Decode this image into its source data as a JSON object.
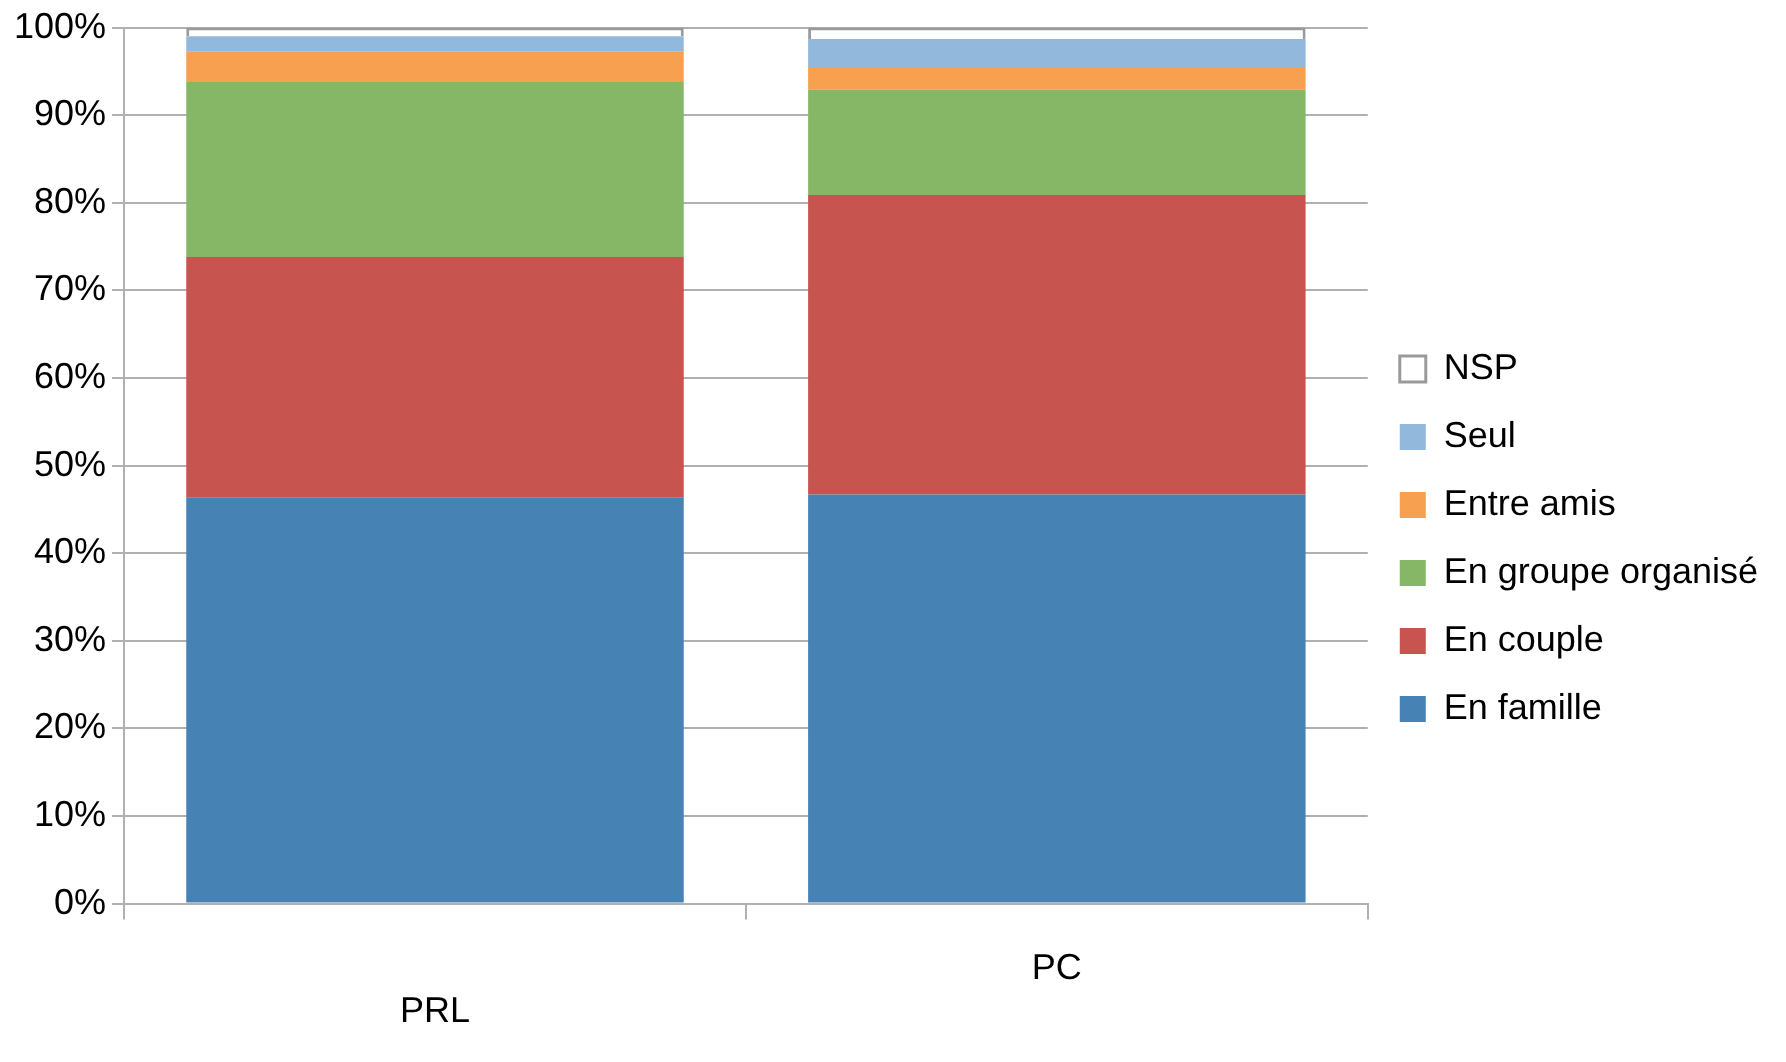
{
  "chart_data": {
    "type": "bar",
    "stacked": true,
    "categories": [
      "PRL",
      "PC"
    ],
    "series": [
      {
        "name": "En famille",
        "color": "#4682b4",
        "values": [
          46.4,
          46.7
        ]
      },
      {
        "name": "En couple",
        "color": "#c85450",
        "values": [
          27.4,
          34.2
        ]
      },
      {
        "name": "En groupe organisé",
        "color": "#86b767",
        "values": [
          20.0,
          12.0
        ]
      },
      {
        "name": "Entre amis",
        "color": "#f7a04f",
        "values": [
          3.5,
          2.6
        ]
      },
      {
        "name": "Seul",
        "color": "#92b8dc",
        "values": [
          1.7,
          3.2
        ]
      },
      {
        "name": "NSP",
        "color": "#ffffff",
        "values": [
          1.0,
          1.3
        ]
      }
    ],
    "ylim": [
      0,
      100
    ],
    "yticks": [
      {
        "value": 0,
        "label": "0%"
      },
      {
        "value": 10,
        "label": "10%"
      },
      {
        "value": 20,
        "label": "20%"
      },
      {
        "value": 30,
        "label": "30%"
      },
      {
        "value": 40,
        "label": "40%"
      },
      {
        "value": 50,
        "label": "50%"
      },
      {
        "value": 60,
        "label": "60%"
      },
      {
        "value": 70,
        "label": "70%"
      },
      {
        "value": 80,
        "label": "80%"
      },
      {
        "value": 90,
        "label": "90%"
      },
      {
        "value": 100,
        "label": "100%"
      }
    ],
    "grid": "y",
    "legend": "right"
  }
}
